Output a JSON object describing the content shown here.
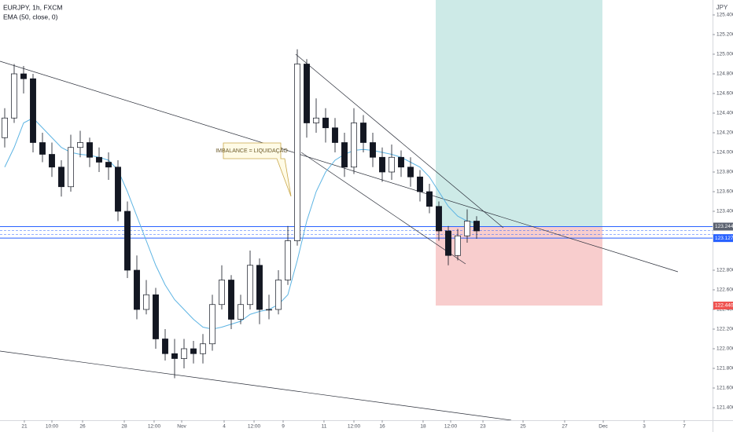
{
  "chart_data": {
    "type": "candlestick",
    "title": "EURJPY, 1h, FXCM",
    "unit": "JPY",
    "x": [
      0,
      1,
      2,
      3,
      4,
      5,
      6,
      7,
      8,
      9,
      10,
      11,
      12,
      13,
      14,
      15,
      16,
      17,
      18,
      19,
      20,
      21,
      22,
      23,
      24,
      25,
      26,
      27,
      28,
      29,
      30,
      31,
      32,
      33,
      34,
      35,
      36,
      37,
      38,
      39,
      40,
      41,
      42,
      43,
      44,
      45,
      46,
      47,
      48,
      49,
      50
    ],
    "open": [
      124.15,
      124.35,
      124.8,
      124.75,
      124.1,
      123.98,
      123.85,
      123.65,
      124.05,
      124.1,
      123.95,
      123.9,
      123.85,
      123.4,
      122.8,
      122.4,
      122.55,
      122.1,
      121.95,
      121.9,
      122.0,
      121.95,
      122.05,
      122.45,
      122.7,
      122.3,
      122.45,
      122.85,
      122.4,
      122.4,
      122.7,
      123.1,
      124.9,
      124.3,
      124.35,
      124.25,
      124.1,
      123.85,
      124.3,
      124.1,
      123.95,
      123.8,
      123.95,
      123.85,
      123.75,
      123.6,
      123.45,
      123.2,
      122.95,
      123.15,
      123.3
    ],
    "high": [
      124.45,
      124.9,
      124.88,
      124.8,
      124.2,
      124.1,
      123.92,
      124.18,
      124.22,
      124.15,
      124.05,
      124.0,
      123.92,
      123.5,
      122.95,
      122.7,
      122.62,
      122.2,
      122.1,
      122.1,
      122.08,
      122.15,
      122.55,
      122.85,
      122.75,
      122.55,
      123.0,
      122.92,
      122.55,
      122.8,
      123.25,
      125.05,
      124.95,
      124.55,
      124.45,
      124.35,
      124.2,
      124.45,
      124.38,
      124.2,
      124.05,
      124.08,
      124.02,
      123.95,
      123.82,
      123.68,
      123.5,
      123.25,
      123.22,
      123.42,
      123.35
    ],
    "low": [
      124.05,
      124.3,
      124.6,
      124.0,
      123.9,
      123.75,
      123.55,
      123.6,
      123.95,
      123.85,
      123.8,
      123.72,
      123.3,
      122.72,
      122.3,
      122.35,
      122.0,
      121.88,
      121.7,
      121.8,
      121.85,
      121.85,
      121.98,
      122.4,
      122.2,
      122.25,
      122.4,
      122.25,
      122.3,
      122.35,
      122.65,
      123.05,
      124.15,
      124.2,
      124.1,
      124.0,
      123.75,
      123.78,
      124.0,
      123.85,
      123.7,
      123.72,
      123.75,
      123.65,
      123.5,
      123.38,
      123.1,
      122.85,
      122.9,
      123.08,
      123.12
    ],
    "close": [
      124.35,
      124.8,
      124.75,
      124.1,
      123.98,
      123.85,
      123.65,
      124.05,
      124.1,
      123.95,
      123.9,
      123.85,
      123.4,
      122.8,
      122.4,
      122.55,
      122.1,
      121.95,
      121.9,
      122.0,
      121.95,
      122.05,
      122.45,
      122.7,
      122.3,
      122.45,
      122.85,
      122.4,
      122.4,
      122.7,
      123.1,
      124.9,
      124.3,
      124.35,
      124.25,
      124.1,
      123.85,
      124.3,
      124.1,
      123.95,
      123.8,
      123.95,
      123.85,
      123.75,
      123.6,
      123.45,
      123.2,
      122.95,
      123.15,
      123.3,
      123.2
    ],
    "up_color": "#ffffff",
    "down_color": "#131722",
    "series": [
      {
        "name": "EMA (50, close, 0)",
        "color": "#5db4e3",
        "values": [
          123.85,
          124.05,
          124.3,
          124.35,
          124.25,
          124.15,
          124.05,
          124.0,
          123.98,
          123.97,
          123.95,
          123.92,
          123.82,
          123.6,
          123.35,
          123.1,
          122.85,
          122.65,
          122.5,
          122.4,
          122.3,
          122.22,
          122.2,
          122.22,
          122.25,
          122.28,
          122.35,
          122.38,
          122.4,
          122.45,
          122.55,
          122.9,
          123.3,
          123.6,
          123.8,
          123.92,
          123.98,
          124.02,
          124.03,
          124.02,
          124.0,
          123.98,
          123.95,
          123.9,
          123.85,
          123.75,
          123.6,
          123.45,
          123.35,
          123.3,
          123.28
        ]
      }
    ],
    "xlim": [
      -0.5,
      75
    ],
    "ylim": [
      121.272,
      125.552
    ],
    "xticks": [
      {
        "value": 2.08,
        "label": "21"
      },
      {
        "value": 5,
        "label": "10:00"
      },
      {
        "value": 8.25,
        "label": "26"
      },
      {
        "value": 12.67,
        "label": "28"
      },
      {
        "value": 15.83,
        "label": "12:00"
      },
      {
        "value": 18.75,
        "label": "Nov"
      },
      {
        "value": 23.25,
        "label": "4"
      },
      {
        "value": 26.42,
        "label": "12:00"
      },
      {
        "value": 29.5,
        "label": "9"
      },
      {
        "value": 33.83,
        "label": "11"
      },
      {
        "value": 37,
        "label": "12:00"
      },
      {
        "value": 40,
        "label": "16"
      },
      {
        "value": 44.33,
        "label": "18"
      },
      {
        "value": 47.25,
        "label": "12:00"
      },
      {
        "value": 50.67,
        "label": "23"
      },
      {
        "value": 54.92,
        "label": "25"
      },
      {
        "value": 59.33,
        "label": "27"
      },
      {
        "value": 63.42,
        "label": "Dec"
      },
      {
        "value": 67.75,
        "label": "3"
      },
      {
        "value": 72,
        "label": "7"
      }
    ],
    "yticks": [
      {
        "value": 125.4,
        "label": "125.400"
      },
      {
        "value": 125.2,
        "label": "125.200"
      },
      {
        "value": 125.0,
        "label": "125.000"
      },
      {
        "value": 124.8,
        "label": "124.800"
      },
      {
        "value": 124.6,
        "label": "124.600"
      },
      {
        "value": 124.4,
        "label": "124.400"
      },
      {
        "value": 124.2,
        "label": "124.200"
      },
      {
        "value": 124.0,
        "label": "124.000"
      },
      {
        "value": 123.8,
        "label": "123.800"
      },
      {
        "value": 123.6,
        "label": "123.600"
      },
      {
        "value": 123.4,
        "label": "123.400"
      },
      {
        "value": 122.8,
        "label": "122.800"
      },
      {
        "value": 122.6,
        "label": "122.600"
      },
      {
        "value": 122.4,
        "label": "122.400"
      },
      {
        "value": 122.2,
        "label": "122.200"
      },
      {
        "value": 122.0,
        "label": "122.000"
      },
      {
        "value": 121.8,
        "label": "121.800"
      },
      {
        "value": 121.6,
        "label": "121.600"
      },
      {
        "value": 121.4,
        "label": "121.400"
      }
    ],
    "trendlines": [
      {
        "x": [
          -0.5,
          71.33
        ],
        "y": [
          124.928,
          122.784
        ]
      },
      {
        "x": [
          -0.5,
          53.67
        ],
        "y": [
          121.976,
          121.272
        ]
      },
      {
        "x": [
          30.83,
          52.83
        ],
        "y": [
          125.0,
          123.232
        ]
      },
      {
        "x": [
          31.42,
          48.83
        ],
        "y": [
          124.0,
          122.864
        ]
      }
    ],
    "price_lines": [
      {
        "value": 123.244,
        "label": "123.244",
        "color": "#5b6270"
      },
      {
        "value": 123.127,
        "label": "123.127",
        "color": "#2962ff"
      }
    ],
    "position": {
      "x": [
        45.67,
        63.33
      ],
      "entry": 123.244,
      "stop": 122.44,
      "target": 125.6,
      "stop_label": "122.440",
      "profit_color": "#cdeae7",
      "loss_color": "#f8cdcd",
      "stop_color": "#ef5350"
    },
    "annotations": [
      {
        "text": "IMBALANCE = LIQUIDAÇÃO"
      }
    ]
  }
}
